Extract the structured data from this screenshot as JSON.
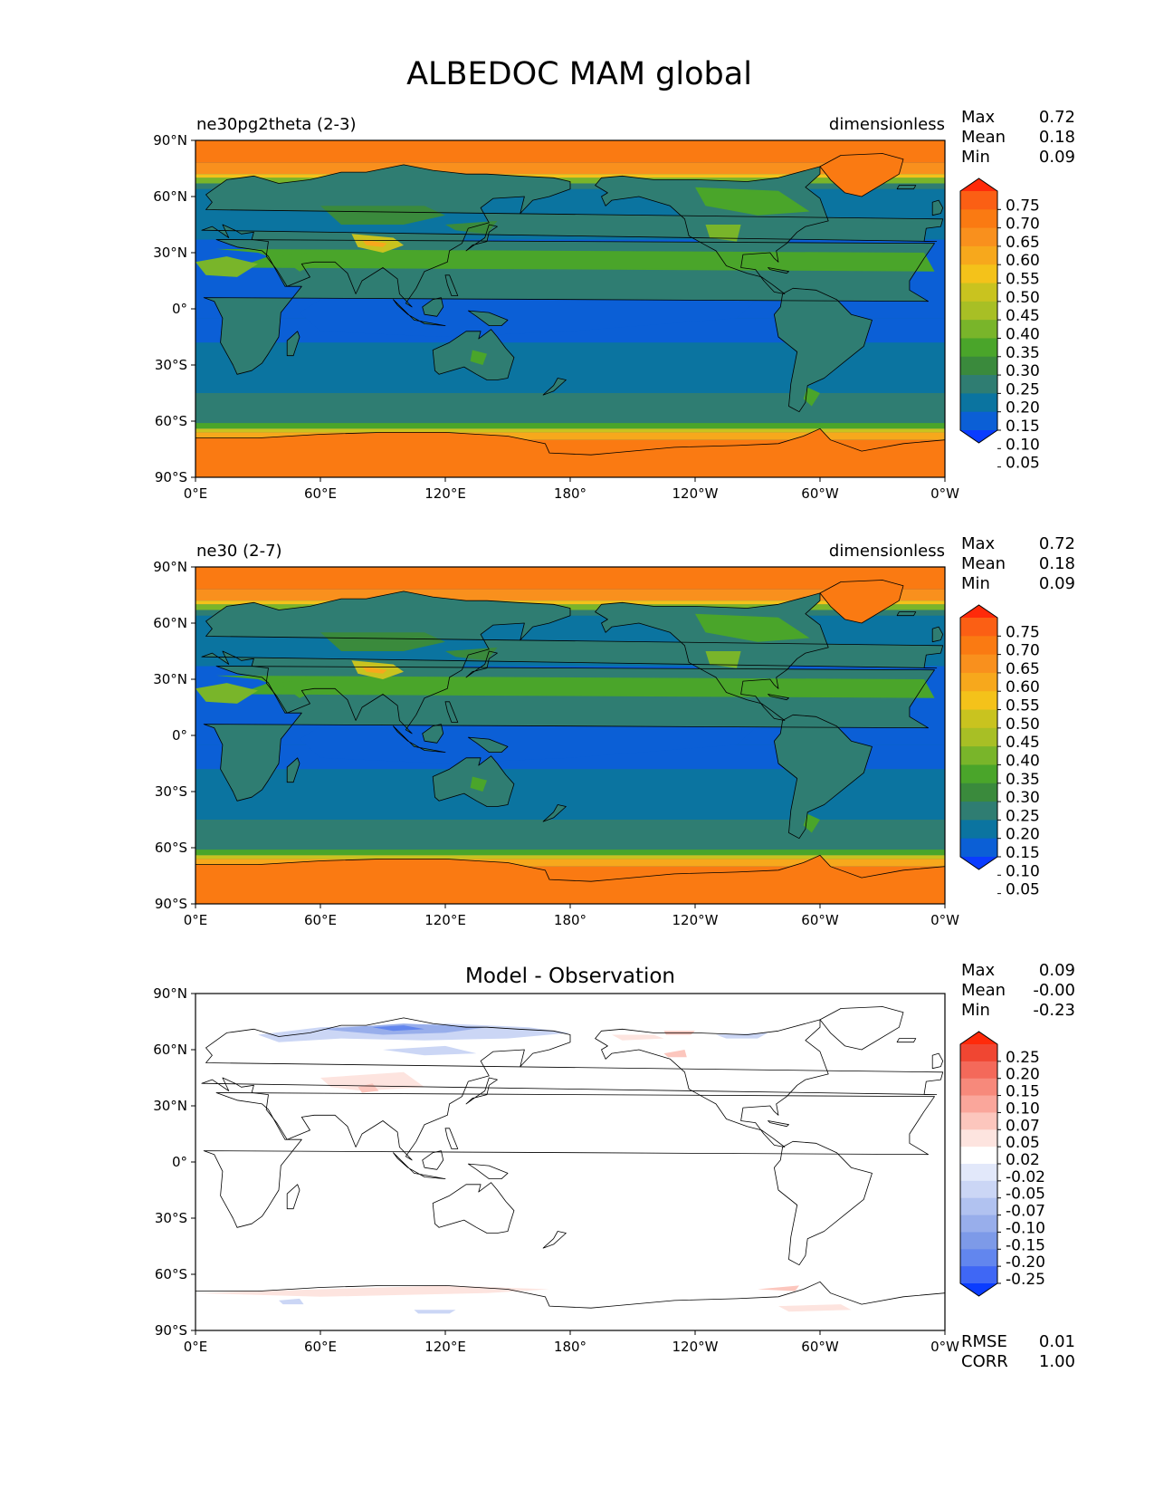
{
  "title": "ALBEDOC MAM global",
  "colors": {
    "abs_levels": [
      "#0a3cff",
      "#0b5fd6",
      "#0b74a0",
      "#2f7d72",
      "#3a8a3c",
      "#4aa52a",
      "#79b52a",
      "#a8bf25",
      "#c9c31f",
      "#f4c21a",
      "#f7a81c",
      "#f9901d",
      "#fa7a12",
      "#fb5f14",
      "#ff2a0a"
    ],
    "diff_levels": [
      "#0a3cff",
      "#3f67f5",
      "#6286ee",
      "#7d9ae8",
      "#98aeeb",
      "#b1c2f0",
      "#cbd6f5",
      "#e2e8fa",
      "#ffffff",
      "#fde4df",
      "#fcc6bd",
      "#faa69b",
      "#f7897b",
      "#f4695a",
      "#f04632",
      "#ff2a0a"
    ],
    "land": "#2f7d72",
    "coast": "#000000"
  },
  "panels": [
    {
      "id": "test",
      "left_title": "ne30pg2theta (2-3)",
      "right_title": "dimensionless",
      "center_title": "",
      "stats": [
        {
          "label": "Max",
          "value": "0.72"
        },
        {
          "label": "Mean",
          "value": "0.18"
        },
        {
          "label": "Min",
          "value": "0.09"
        }
      ],
      "colorbar_ticks": [
        "0.75",
        "0.70",
        "0.65",
        "0.60",
        "0.55",
        "0.50",
        "0.45",
        "0.40",
        "0.35",
        "0.30",
        "0.25",
        "0.20",
        "0.15",
        "0.10",
        "0.05"
      ],
      "extra_stats": []
    },
    {
      "id": "ref",
      "left_title": "ne30 (2-7)",
      "right_title": "dimensionless",
      "center_title": "",
      "stats": [
        {
          "label": "Max",
          "value": "0.72"
        },
        {
          "label": "Mean",
          "value": "0.18"
        },
        {
          "label": "Min",
          "value": "0.09"
        }
      ],
      "colorbar_ticks": [
        "0.75",
        "0.70",
        "0.65",
        "0.60",
        "0.55",
        "0.50",
        "0.45",
        "0.40",
        "0.35",
        "0.30",
        "0.25",
        "0.20",
        "0.15",
        "0.10",
        "0.05"
      ],
      "extra_stats": []
    },
    {
      "id": "diff",
      "left_title": "",
      "right_title": "",
      "center_title": "Model - Observation",
      "stats": [
        {
          "label": "Max",
          "value": "0.09"
        },
        {
          "label": "Mean",
          "value": "-0.00"
        },
        {
          "label": "Min",
          "value": "-0.23"
        }
      ],
      "colorbar_ticks": [
        "0.25",
        "0.20",
        "0.15",
        "0.10",
        "0.07",
        "0.05",
        "0.02",
        "-0.02",
        "-0.05",
        "-0.07",
        "-0.10",
        "-0.15",
        "-0.20",
        "-0.25"
      ],
      "extra_stats": [
        {
          "label": "RMSE",
          "value": "0.01"
        },
        {
          "label": "CORR",
          "value": "1.00"
        }
      ]
    }
  ],
  "chart_data": [
    {
      "type": "heatmap",
      "title": "ne30pg2theta (2-3)",
      "units": "dimensionless",
      "x_ticks": [
        "0°E",
        "60°E",
        "120°E",
        "180°",
        "120°W",
        "60°W",
        "0°W"
      ],
      "y_ticks": [
        "90°N",
        "60°N",
        "30°N",
        "0°",
        "30°S",
        "60°S",
        "90°S"
      ],
      "levels": [
        0.05,
        0.1,
        0.15,
        0.2,
        0.25,
        0.3,
        0.35,
        0.4,
        0.45,
        0.5,
        0.55,
        0.6,
        0.65,
        0.7,
        0.75
      ],
      "zonal_pattern": [
        {
          "lat": 90,
          "value": 0.68
        },
        {
          "lat": 70,
          "value": 0.62
        },
        {
          "lat": 50,
          "value": 0.15
        },
        {
          "lat": 0,
          "value": 0.09
        },
        {
          "lat": -50,
          "value": 0.18
        },
        {
          "lat": -70,
          "value": 0.66
        },
        {
          "lat": -90,
          "value": 0.7
        }
      ],
      "stats": {
        "max": 0.72,
        "mean": 0.18,
        "min": 0.09
      }
    },
    {
      "type": "heatmap",
      "title": "ne30 (2-7)",
      "units": "dimensionless",
      "x_ticks": [
        "0°E",
        "60°E",
        "120°E",
        "180°",
        "120°W",
        "60°W",
        "0°W"
      ],
      "y_ticks": [
        "90°N",
        "60°N",
        "30°N",
        "0°",
        "30°S",
        "60°S",
        "90°S"
      ],
      "levels": [
        0.05,
        0.1,
        0.15,
        0.2,
        0.25,
        0.3,
        0.35,
        0.4,
        0.45,
        0.5,
        0.55,
        0.6,
        0.65,
        0.7,
        0.75
      ],
      "stats": {
        "max": 0.72,
        "mean": 0.18,
        "min": 0.09
      }
    },
    {
      "type": "heatmap",
      "title": "Model - Observation",
      "x_ticks": [
        "0°E",
        "60°E",
        "120°E",
        "180°",
        "120°W",
        "60°W",
        "0°W"
      ],
      "y_ticks": [
        "90°N",
        "60°N",
        "30°N",
        "0°",
        "30°S",
        "60°S",
        "90°S"
      ],
      "levels": [
        -0.25,
        -0.2,
        -0.15,
        -0.1,
        -0.07,
        -0.05,
        -0.02,
        0.02,
        0.05,
        0.07,
        0.1,
        0.15,
        0.2,
        0.25
      ],
      "stats": {
        "max": 0.09,
        "mean": -0.0,
        "min": -0.23,
        "rmse": 0.01,
        "corr": 1.0
      }
    }
  ]
}
